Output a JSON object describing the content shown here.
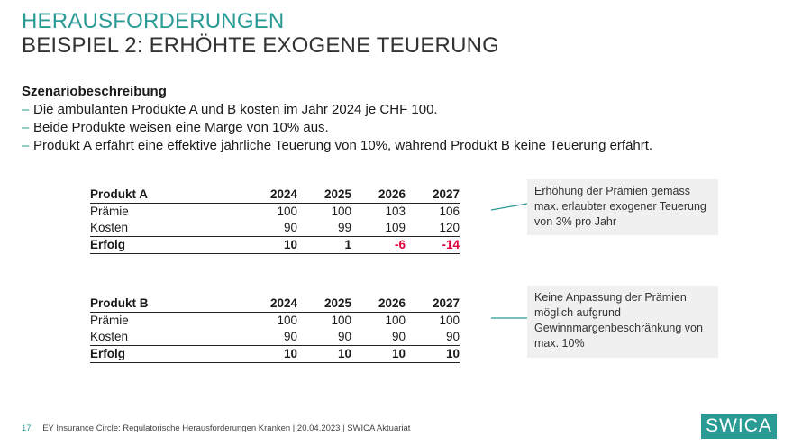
{
  "header": {
    "title_line1": "HERAUSFORDERUNGEN",
    "title_line2": "BEISPIEL 2: ERHÖHTE EXOGENE TEUERUNG"
  },
  "scenario": {
    "heading": "Szenariobeschreibung",
    "bullet_symbol": "–",
    "bullets": [
      "Die ambulanten Produkte A und B kosten im Jahr 2024 je CHF 100.",
      "Beide Produkte weisen eine Marge von 10% aus.",
      "Produkt A erfährt eine effektive jährliche Teuerung von 10%, während Produkt B keine Teuerung erfährt."
    ]
  },
  "tables": [
    {
      "name": "Produkt A",
      "years": [
        "2024",
        "2025",
        "2026",
        "2027"
      ],
      "rows": [
        {
          "label": "Prämie",
          "values": [
            "100",
            "100",
            "103",
            "106"
          ]
        },
        {
          "label": "Kosten",
          "values": [
            "90",
            "99",
            "109",
            "120"
          ]
        },
        {
          "label": "Erfolg",
          "values": [
            "10",
            "1",
            "-6",
            "-14"
          ]
        }
      ],
      "callout": "Erhöhung der Prämien gemäss max. erlaubter exogener Teuerung von 3% pro Jahr"
    },
    {
      "name": "Produkt B",
      "years": [
        "2024",
        "2025",
        "2026",
        "2027"
      ],
      "rows": [
        {
          "label": "Prämie",
          "values": [
            "100",
            "100",
            "100",
            "100"
          ]
        },
        {
          "label": "Kosten",
          "values": [
            "90",
            "90",
            "90",
            "90"
          ]
        },
        {
          "label": "Erfolg",
          "values": [
            "10",
            "10",
            "10",
            "10"
          ]
        }
      ],
      "callout": "Keine Anpassung der Prämien möglich aufgrund Gewinnmargenbeschränkung von max. 10%"
    }
  ],
  "footer": {
    "page_number": "17",
    "text": "EY Insurance Circle: Regulatorische Herausforderungen Kranken | 20.04.2023 | SWICA Aktuariat"
  },
  "logo": {
    "text": "SWICA"
  },
  "colors": {
    "accent": "#2a9a95",
    "negative": "#e0003c",
    "callout_bg": "#f0f0f0"
  }
}
